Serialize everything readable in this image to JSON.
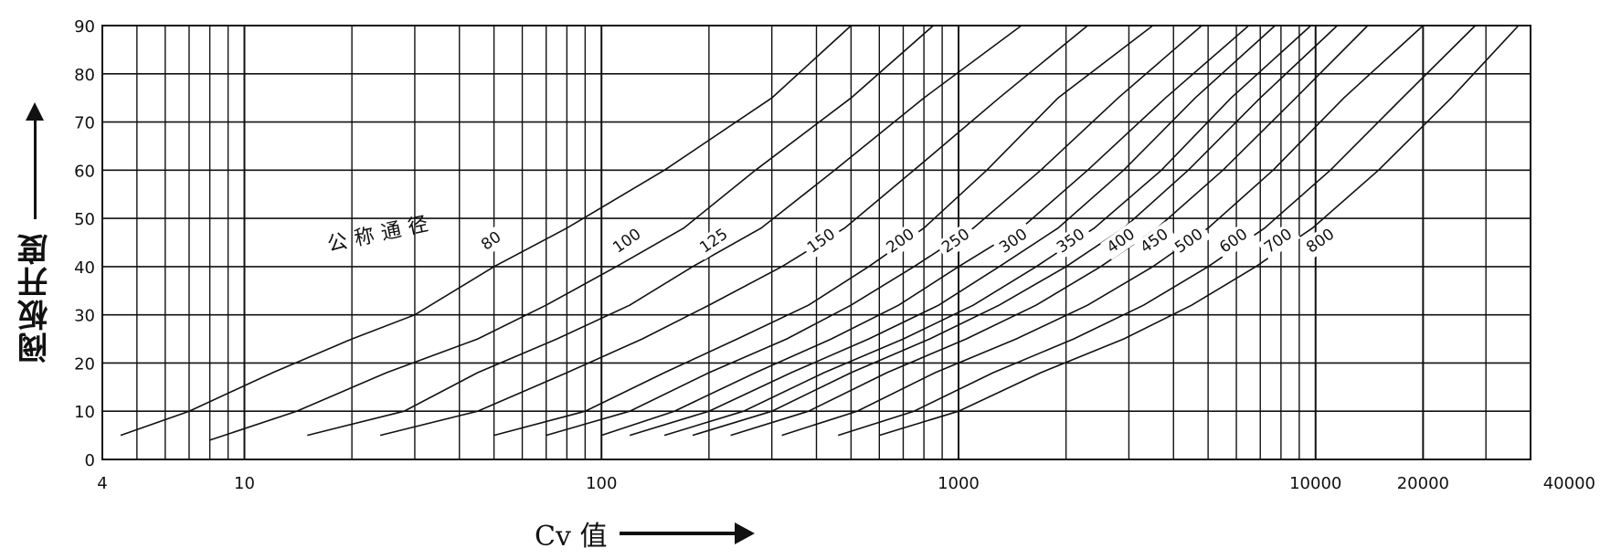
{
  "chart_data": {
    "type": "line",
    "xlabel": "Cv 值",
    "ylabel": "阀板开度",
    "x_scale": "log",
    "xlim": [
      4,
      40000
    ],
    "ylim": [
      0,
      90
    ],
    "grid": true,
    "x_major_ticks": [
      10,
      100,
      1000,
      10000
    ],
    "x_tick_labels": [
      {
        "value": 4,
        "label": "4"
      },
      {
        "value": 10,
        "label": "10"
      },
      {
        "value": 100,
        "label": "100"
      },
      {
        "value": 1000,
        "label": "1000"
      },
      {
        "value": 10000,
        "label": "10000"
      },
      {
        "value": 20000,
        "label": "20000"
      },
      {
        "value": 40000,
        "label": "40000"
      }
    ],
    "y_ticks": [
      0,
      10,
      20,
      30,
      40,
      50,
      60,
      70,
      80,
      90
    ],
    "y_tick_labels": [
      "0",
      "10",
      "20",
      "30",
      "40",
      "50",
      "60",
      "70",
      "80",
      "90"
    ],
    "legend_title": "公称通径",
    "series": [
      {
        "name": "80",
        "label_x": 50,
        "label_y": 44.5,
        "points": [
          [
            4.5,
            5
          ],
          [
            7,
            10
          ],
          [
            12,
            18
          ],
          [
            20,
            25
          ],
          [
            30,
            30
          ],
          [
            50,
            40
          ],
          [
            80,
            48
          ],
          [
            150,
            60
          ],
          [
            300,
            75
          ],
          [
            500,
            90
          ]
        ]
      },
      {
        "name": "100",
        "label_x": 120,
        "label_y": 44.5,
        "points": [
          [
            8,
            4
          ],
          [
            14,
            10
          ],
          [
            25,
            18
          ],
          [
            45,
            25
          ],
          [
            70,
            32
          ],
          [
            110,
            40
          ],
          [
            170,
            48
          ],
          [
            270,
            60
          ],
          [
            500,
            75
          ],
          [
            850,
            90
          ]
        ]
      },
      {
        "name": "125",
        "label_x": 210,
        "label_y": 44.5,
        "points": [
          [
            15,
            5
          ],
          [
            28,
            10
          ],
          [
            45,
            18
          ],
          [
            75,
            25
          ],
          [
            120,
            32
          ],
          [
            180,
            40
          ],
          [
            280,
            48
          ],
          [
            450,
            60
          ],
          [
            800,
            75
          ],
          [
            1500,
            90
          ]
        ]
      },
      {
        "name": "150",
        "label_x": 420,
        "label_y": 44.5,
        "points": [
          [
            24,
            5
          ],
          [
            45,
            10
          ],
          [
            80,
            18
          ],
          [
            130,
            25
          ],
          [
            200,
            32
          ],
          [
            320,
            40
          ],
          [
            480,
            48
          ],
          [
            750,
            60
          ],
          [
            1300,
            75
          ],
          [
            2300,
            90
          ]
        ]
      },
      {
        "name": "200",
        "label_x": 700,
        "label_y": 44.5,
        "points": [
          [
            50,
            5
          ],
          [
            90,
            10
          ],
          [
            150,
            18
          ],
          [
            240,
            25
          ],
          [
            380,
            32
          ],
          [
            560,
            40
          ],
          [
            800,
            48
          ],
          [
            1200,
            60
          ],
          [
            1900,
            75
          ],
          [
            3500,
            90
          ]
        ]
      },
      {
        "name": "250",
        "label_x": 1000,
        "label_y": 44.5,
        "points": [
          [
            70,
            5
          ],
          [
            120,
            10
          ],
          [
            200,
            18
          ],
          [
            330,
            25
          ],
          [
            500,
            32
          ],
          [
            750,
            40
          ],
          [
            1100,
            48
          ],
          [
            1700,
            60
          ],
          [
            2800,
            75
          ],
          [
            4800,
            90
          ]
        ]
      },
      {
        "name": "300",
        "label_x": 1450,
        "label_y": 44.5,
        "points": [
          [
            100,
            5
          ],
          [
            160,
            10
          ],
          [
            270,
            18
          ],
          [
            440,
            25
          ],
          [
            680,
            32
          ],
          [
            1000,
            40
          ],
          [
            1500,
            48
          ],
          [
            2300,
            60
          ],
          [
            3800,
            75
          ],
          [
            6500,
            90
          ]
        ]
      },
      {
        "name": "350",
        "label_x": 2100,
        "label_y": 44.5,
        "points": [
          [
            120,
            5
          ],
          [
            200,
            10
          ],
          [
            340,
            18
          ],
          [
            560,
            25
          ],
          [
            880,
            32
          ],
          [
            1300,
            40
          ],
          [
            1900,
            48
          ],
          [
            2900,
            60
          ],
          [
            4600,
            75
          ],
          [
            7700,
            90
          ]
        ]
      },
      {
        "name": "400",
        "label_x": 2900,
        "label_y": 44.5,
        "points": [
          [
            150,
            5
          ],
          [
            250,
            10
          ],
          [
            420,
            18
          ],
          [
            700,
            25
          ],
          [
            1100,
            32
          ],
          [
            1650,
            40
          ],
          [
            2400,
            48
          ],
          [
            3700,
            60
          ],
          [
            5800,
            75
          ],
          [
            9700,
            90
          ]
        ]
      },
      {
        "name": "450",
        "label_x": 3600,
        "label_y": 44.5,
        "points": [
          [
            180,
            5
          ],
          [
            300,
            10
          ],
          [
            500,
            18
          ],
          [
            830,
            25
          ],
          [
            1300,
            32
          ],
          [
            2000,
            40
          ],
          [
            2900,
            48
          ],
          [
            4400,
            60
          ],
          [
            7000,
            75
          ],
          [
            11500,
            90
          ]
        ]
      },
      {
        "name": "500",
        "label_x": 4500,
        "label_y": 44.5,
        "points": [
          [
            230,
            5
          ],
          [
            380,
            10
          ],
          [
            630,
            18
          ],
          [
            1050,
            25
          ],
          [
            1650,
            32
          ],
          [
            2500,
            40
          ],
          [
            3600,
            48
          ],
          [
            5500,
            60
          ],
          [
            8800,
            75
          ],
          [
            14000,
            90
          ]
        ]
      },
      {
        "name": "600",
        "label_x": 6000,
        "label_y": 44.5,
        "points": [
          [
            320,
            5
          ],
          [
            520,
            10
          ],
          [
            860,
            18
          ],
          [
            1450,
            25
          ],
          [
            2300,
            32
          ],
          [
            3500,
            40
          ],
          [
            5000,
            48
          ],
          [
            7600,
            60
          ],
          [
            12000,
            75
          ],
          [
            20000,
            90
          ]
        ]
      },
      {
        "name": "700",
        "label_x": 8000,
        "label_y": 44.5,
        "points": [
          [
            460,
            5
          ],
          [
            750,
            10
          ],
          [
            1250,
            18
          ],
          [
            2100,
            25
          ],
          [
            3300,
            32
          ],
          [
            5000,
            40
          ],
          [
            7200,
            48
          ],
          [
            11000,
            60
          ],
          [
            17500,
            75
          ],
          [
            28000,
            90
          ]
        ]
      },
      {
        "name": "800",
        "label_x": 10500,
        "label_y": 44.5,
        "points": [
          [
            600,
            5
          ],
          [
            1000,
            10
          ],
          [
            1700,
            18
          ],
          [
            2900,
            25
          ],
          [
            4500,
            32
          ],
          [
            6800,
            40
          ],
          [
            9800,
            48
          ],
          [
            15000,
            60
          ],
          [
            24000,
            75
          ],
          [
            37000,
            90
          ]
        ]
      }
    ]
  }
}
